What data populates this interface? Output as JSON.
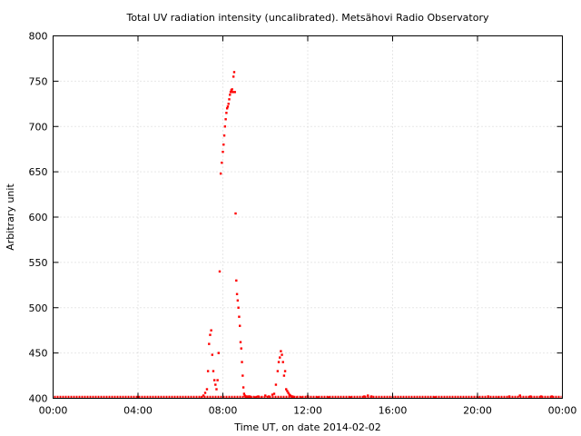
{
  "chart_data": {
    "type": "scatter",
    "title": "Total UV radiation intensity (uncalibrated). Metsähovi Radio Observatory",
    "xlabel": "Time UT, on date 2014-02-02",
    "ylabel": "Arbitrary unit",
    "xlim": [
      "00:00",
      "24:00"
    ],
    "ylim": [
      400,
      800
    ],
    "x_tick_labels": [
      "00:00",
      "04:00",
      "08:00",
      "12:00",
      "16:00",
      "20:00",
      "00:00"
    ],
    "y_tick_labels": [
      "400",
      "450",
      "500",
      "550",
      "600",
      "650",
      "700",
      "750",
      "800"
    ],
    "grid": true,
    "point_color": "#ff0000",
    "series": [
      {
        "x": [
          "07:00",
          "07:05",
          "07:10",
          "07:15",
          "07:18",
          "07:21",
          "07:24",
          "07:27",
          "07:30",
          "07:33",
          "07:36",
          "07:39",
          "07:42",
          "07:45",
          "07:48",
          "07:51",
          "07:54",
          "07:57",
          "08:00",
          "08:02",
          "08:04",
          "08:06",
          "08:08",
          "08:10",
          "08:12",
          "08:14",
          "08:16",
          "08:18",
          "08:20",
          "08:22",
          "08:24",
          "08:26",
          "08:28",
          "08:30",
          "08:32",
          "08:34",
          "08:36",
          "08:38",
          "08:40",
          "08:42",
          "08:44",
          "08:46",
          "08:48",
          "08:50",
          "08:52",
          "08:54",
          "08:56",
          "08:58",
          "09:00",
          "09:02",
          "09:04",
          "09:06",
          "09:08",
          "09:10",
          "09:12",
          "09:14",
          "09:16",
          "09:20",
          "09:30",
          "09:40",
          "09:50",
          "10:00",
          "10:10",
          "10:20",
          "10:25",
          "10:30",
          "10:35",
          "10:38",
          "10:41",
          "10:44",
          "10:47",
          "10:50",
          "10:53",
          "10:56",
          "10:59",
          "11:02",
          "11:05",
          "11:08",
          "11:11",
          "11:14",
          "11:17",
          "11:20",
          "11:30",
          "11:40",
          "12:00",
          "12:30",
          "13:00",
          "14:00",
          "14:40",
          "14:50",
          "15:00",
          "16:00",
          "18:00",
          "20:00",
          "20:30",
          "21:00",
          "21:30",
          "22:00",
          "22:30",
          "23:00",
          "23:30"
        ],
        "y": [
          401,
          403,
          406,
          410,
          430,
          460,
          470,
          475,
          448,
          430,
          420,
          415,
          410,
          420,
          450,
          540,
          648,
          660,
          672,
          680,
          690,
          700,
          708,
          715,
          720,
          722,
          725,
          730,
          735,
          738,
          740,
          741,
          738,
          755,
          760,
          738,
          604,
          530,
          515,
          508,
          500,
          490,
          480,
          462,
          455,
          440,
          425,
          412,
          405,
          403,
          402,
          402,
          401,
          401,
          402,
          401,
          402,
          401,
          401,
          402,
          401,
          403,
          402,
          404,
          405,
          415,
          430,
          440,
          445,
          452,
          448,
          440,
          425,
          430,
          410,
          408,
          406,
          404,
          403,
          402,
          402,
          401,
          401,
          401,
          402,
          401,
          401,
          401,
          402,
          403,
          402,
          401,
          401,
          401,
          402,
          401,
          402,
          403,
          402,
          402,
          402
        ]
      }
    ]
  }
}
